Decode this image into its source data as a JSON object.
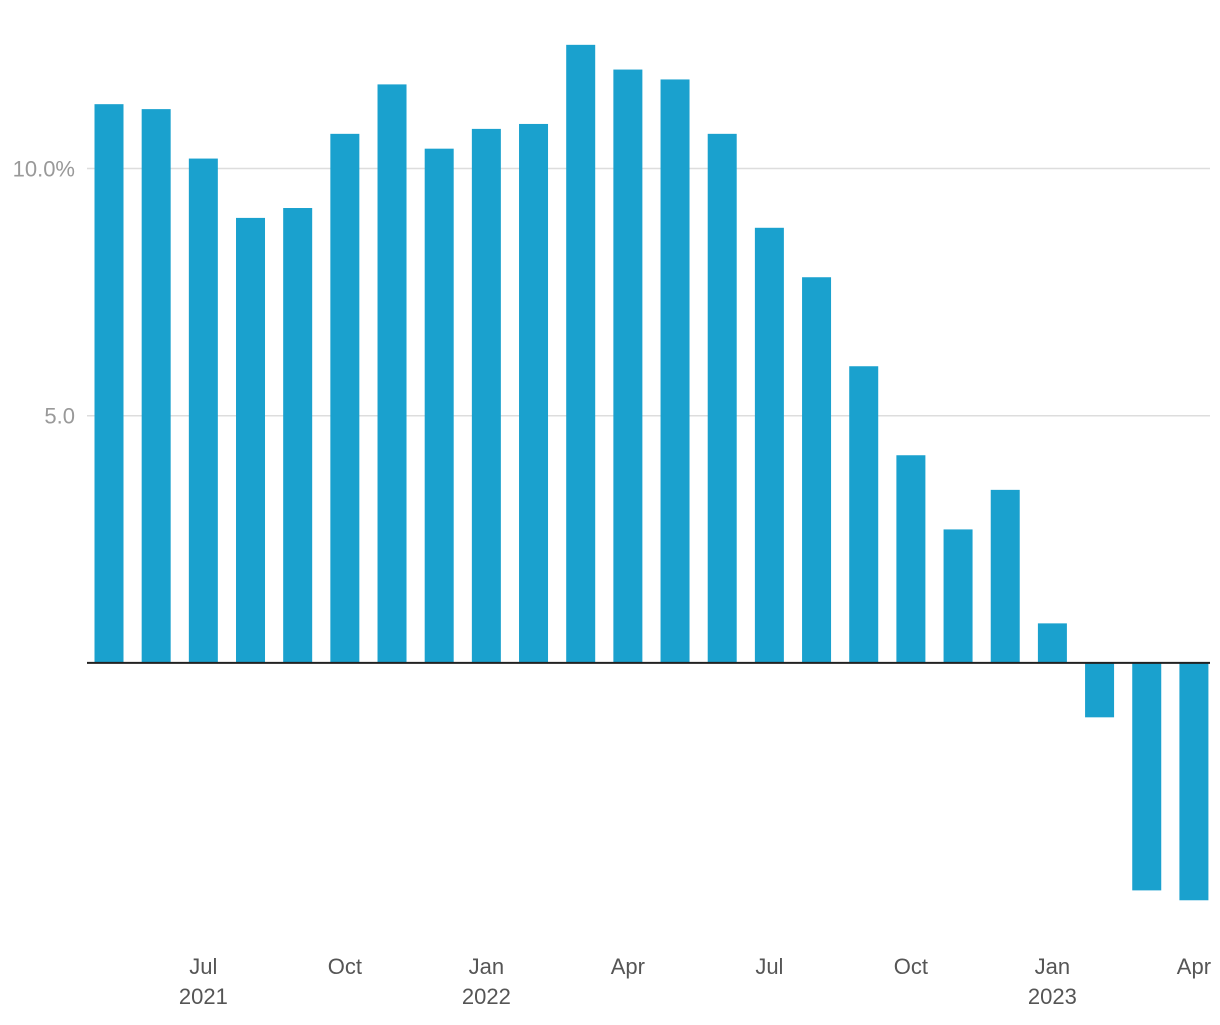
{
  "chart_data": {
    "type": "bar",
    "series_color": "#1aa1ce",
    "categories": [
      "2021-05",
      "2021-06",
      "2021-07",
      "2021-08",
      "2021-09",
      "2021-10",
      "2021-11",
      "2021-12",
      "2022-01",
      "2022-02",
      "2022-03",
      "2022-04",
      "2022-05",
      "2022-06",
      "2022-07",
      "2022-08",
      "2022-09",
      "2022-10",
      "2022-11",
      "2022-12",
      "2023-01",
      "2023-02",
      "2023-03",
      "2023-04"
    ],
    "values": [
      11.3,
      11.2,
      10.2,
      9.0,
      9.2,
      10.7,
      11.7,
      10.4,
      10.8,
      10.9,
      12.5,
      12.0,
      11.8,
      10.7,
      8.8,
      7.8,
      6.0,
      4.2,
      2.7,
      3.5,
      0.8,
      -1.1,
      -4.6,
      -4.8
    ],
    "ylim": [
      -5.3,
      12.8
    ],
    "y_ticks": [
      {
        "value": 5,
        "label": "5.0"
      },
      {
        "value": 10,
        "label": "10.0%"
      }
    ],
    "x_ticks": [
      {
        "index": 2,
        "month": "Jul",
        "year": "2021"
      },
      {
        "index": 5,
        "month": "Oct",
        "year": ""
      },
      {
        "index": 8,
        "month": "Jan",
        "year": "2022"
      },
      {
        "index": 11,
        "month": "Apr",
        "year": ""
      },
      {
        "index": 14,
        "month": "Jul",
        "year": ""
      },
      {
        "index": 17,
        "month": "Oct",
        "year": ""
      },
      {
        "index": 20,
        "month": "Jan",
        "year": "2023"
      },
      {
        "index": 23,
        "month": "Apr",
        "year": ""
      }
    ],
    "grid": true,
    "legend": "none"
  }
}
